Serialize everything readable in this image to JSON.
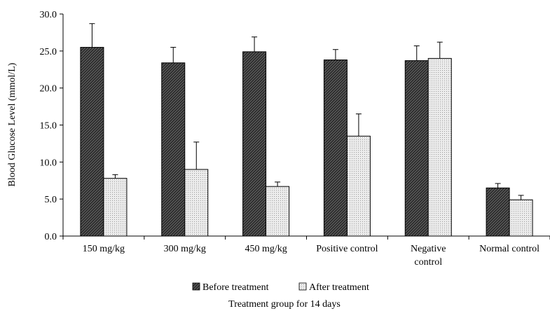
{
  "chart_data": {
    "type": "bar",
    "ylabel": "Blood Glucose Level (mmol/L)",
    "xlabel": "Treatment group for 14 days",
    "ylim": [
      0,
      30
    ],
    "yticks": [
      "0.0",
      "5.0",
      "10.0",
      "15.0",
      "20.0",
      "25.0",
      "30.0"
    ],
    "grid": false,
    "legend_position": "bottom",
    "categories": [
      [
        "150 mg/kg"
      ],
      [
        "300 mg/kg"
      ],
      [
        "450 mg/kg"
      ],
      [
        "Positive control"
      ],
      [
        "Negative",
        "control"
      ],
      [
        "Normal control"
      ]
    ],
    "series": [
      {
        "name": "Before treatment",
        "pattern": "dark-hatch",
        "color": "#4d4d4d",
        "values": [
          25.5,
          23.4,
          24.9,
          23.8,
          23.7,
          6.5
        ],
        "errors": [
          3.2,
          2.1,
          2.0,
          1.4,
          2.0,
          0.6
        ]
      },
      {
        "name": "After treatment",
        "pattern": "light-dots",
        "color": "#dcdcdc",
        "values": [
          7.8,
          9.0,
          6.7,
          13.5,
          24.0,
          4.9
        ],
        "errors": [
          0.5,
          3.7,
          0.6,
          3.0,
          2.2,
          0.6
        ]
      }
    ]
  }
}
